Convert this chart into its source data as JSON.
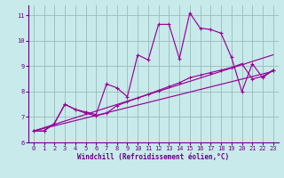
{
  "xlabel": "Windchill (Refroidissement éolien,°C)",
  "bg_color": "#c8eaea",
  "line_color": "#990099",
  "grid_color": "#99bbbb",
  "axis_color": "#660088",
  "spine_color": "#660088",
  "ylim": [
    6.0,
    11.4
  ],
  "xlim": [
    -0.5,
    23.5
  ],
  "yticks": [
    6,
    7,
    8,
    9,
    10,
    11
  ],
  "xticks": [
    0,
    1,
    2,
    3,
    4,
    5,
    6,
    7,
    8,
    9,
    10,
    11,
    12,
    13,
    14,
    15,
    16,
    17,
    18,
    19,
    20,
    21,
    22,
    23
  ],
  "line1_x": [
    0,
    1,
    2,
    3,
    4,
    5,
    6,
    7,
    8,
    9,
    10,
    11,
    12,
    13,
    14,
    15,
    16,
    17,
    18,
    19,
    20,
    21,
    22,
    23
  ],
  "line1_y": [
    6.45,
    6.45,
    6.75,
    7.5,
    7.3,
    7.2,
    7.1,
    8.3,
    8.15,
    7.8,
    9.45,
    9.25,
    10.65,
    10.65,
    9.3,
    11.1,
    10.5,
    10.45,
    10.3,
    9.35,
    8.0,
    9.1,
    8.55,
    8.85
  ],
  "line2_x": [
    0,
    1,
    2,
    3,
    4,
    5,
    6,
    7,
    8,
    9,
    10,
    11,
    12,
    13,
    14,
    15,
    16,
    17,
    18,
    19,
    20,
    21,
    22,
    23
  ],
  "line2_y": [
    6.45,
    6.45,
    6.75,
    7.5,
    7.3,
    7.15,
    7.05,
    7.15,
    7.45,
    7.6,
    7.75,
    7.9,
    8.05,
    8.2,
    8.35,
    8.55,
    8.65,
    8.75,
    8.85,
    8.95,
    9.1,
    8.5,
    8.6,
    8.85
  ],
  "line3_x": [
    0,
    23
  ],
  "line3_y": [
    6.45,
    8.8
  ],
  "line4_x": [
    0,
    23
  ],
  "line4_y": [
    6.45,
    9.45
  ]
}
